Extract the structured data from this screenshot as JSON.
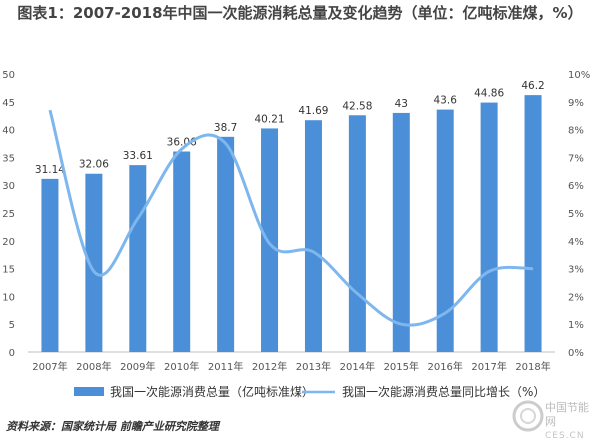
{
  "title": "图表1：2007-2018年中国一次能源消耗总量及变化趋势（单位：亿吨标准煤，%）",
  "chart_data": {
    "type": "bar",
    "categories": [
      "2007年",
      "2008年",
      "2009年",
      "2010年",
      "2011年",
      "2012年",
      "2013年",
      "2014年",
      "2015年",
      "2016年",
      "2017年",
      "2018年"
    ],
    "series": [
      {
        "name": "我国一次能源消费总量（亿吨标准煤）",
        "type": "bar",
        "axis": "left",
        "values": [
          31.14,
          32.06,
          33.61,
          36.06,
          38.7,
          40.21,
          41.69,
          42.58,
          43,
          43.6,
          44.86,
          46.2
        ],
        "labels": [
          "31.14",
          "32.06",
          "33.61",
          "36.06",
          "38.7",
          "40.21",
          "41.69",
          "42.58",
          "43",
          "43.6",
          "44.86",
          "46.2"
        ]
      },
      {
        "name": "我国一次能源消费总量同比增长（%）",
        "type": "line",
        "axis": "right",
        "values": [
          8.7,
          2.9,
          4.8,
          7.3,
          7.5,
          3.9,
          3.6,
          2.1,
          1.0,
          1.4,
          2.9,
          3.0
        ]
      }
    ],
    "y_left": {
      "ylim": [
        0,
        50
      ],
      "ticks": [
        "0",
        "5",
        "10",
        "15",
        "20",
        "25",
        "30",
        "35",
        "40",
        "45",
        "50"
      ]
    },
    "y_right": {
      "ylim": [
        0,
        10
      ],
      "ticks": [
        "0%",
        "1%",
        "2%",
        "3%",
        "4%",
        "5%",
        "6%",
        "7%",
        "8%",
        "9%",
        "10%"
      ]
    },
    "legend": {
      "placement": "bottom"
    },
    "grid": false,
    "colors": {
      "bar": "#4A8FD8",
      "line": "#7EB6EE"
    }
  },
  "source": "资料来源：国家统计局 前瞻产业研究院整理",
  "logo": {
    "name": "中国节能网",
    "domain": "CES.CN",
    "icon": "ces-logo-icon"
  }
}
